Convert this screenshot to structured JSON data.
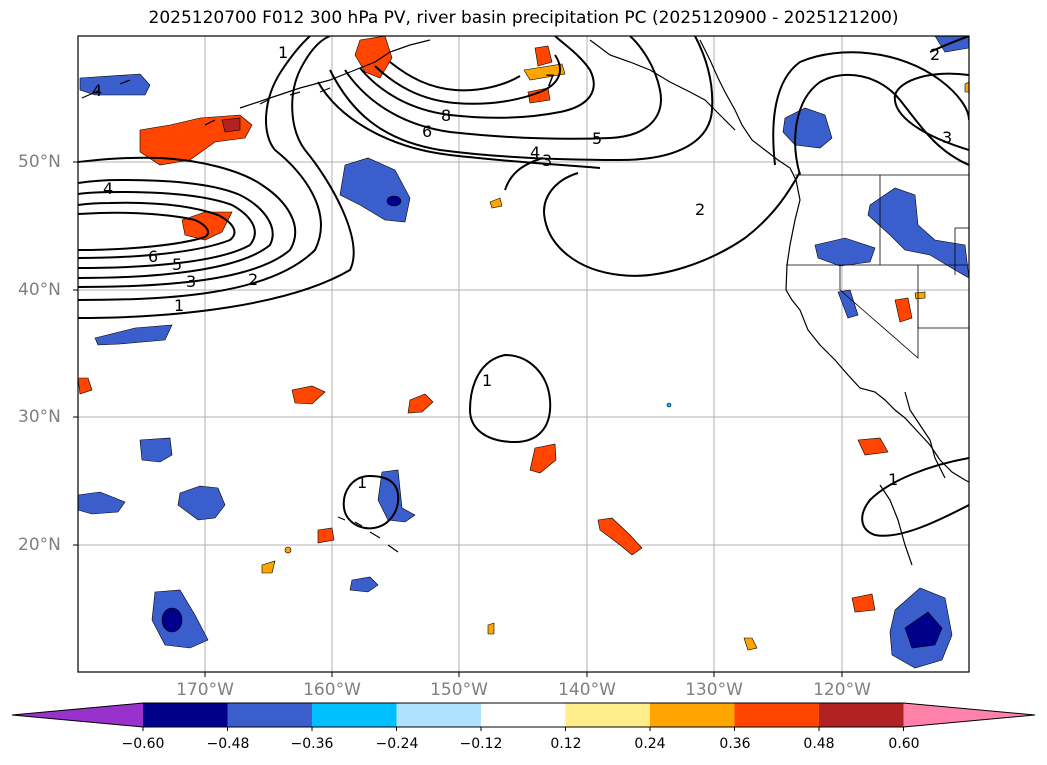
{
  "title": "2025120700 F012 300 hPa PV, river basin precipitation PC (2025120900 - 2025121200)",
  "lat_labels": [
    "50°N",
    "40°N",
    "30°N",
    "20°N"
  ],
  "lon_labels": [
    "170°W",
    "160°W",
    "150°W",
    "140°W",
    "130°W",
    "120°W"
  ],
  "colorbar": {
    "ticks": [
      "−0.60",
      "−0.48",
      "−0.36",
      "−0.24",
      "−0.12",
      "0.12",
      "0.24",
      "0.36",
      "0.48",
      "0.60"
    ],
    "tick_values": [
      -0.6,
      -0.48,
      -0.36,
      -0.24,
      -0.12,
      0.12,
      0.24,
      0.36,
      0.48,
      0.6
    ],
    "colors": [
      "#9932cc",
      "#00008b",
      "#3a5fcd",
      "#00bfff",
      "#b0e2ff",
      "#ffffff",
      "#ffec8b",
      "#ffa500",
      "#ff4500",
      "#b22222",
      "#ff82ab"
    ]
  },
  "contour_labels": [
    {
      "id": "c1",
      "text": "1"
    },
    {
      "id": "c2",
      "text": "2"
    },
    {
      "id": "c3",
      "text": "3"
    },
    {
      "id": "c4",
      "text": "4"
    },
    {
      "id": "c5",
      "text": "5"
    },
    {
      "id": "c6",
      "text": "6"
    },
    {
      "id": "c7",
      "text": "7"
    },
    {
      "id": "c8",
      "text": "8"
    },
    {
      "id": "c9",
      "text": "6"
    },
    {
      "id": "c10",
      "text": "5"
    },
    {
      "id": "c11",
      "text": "4"
    },
    {
      "id": "c12",
      "text": "3"
    },
    {
      "id": "c13",
      "text": "2"
    },
    {
      "id": "c14",
      "text": "1"
    },
    {
      "id": "c15",
      "text": "3"
    },
    {
      "id": "c16",
      "text": "1"
    },
    {
      "id": "c17",
      "text": "1"
    },
    {
      "id": "c18",
      "text": "1"
    },
    {
      "id": "c19",
      "text": "2"
    },
    {
      "id": "c20",
      "text": "4"
    }
  ]
}
